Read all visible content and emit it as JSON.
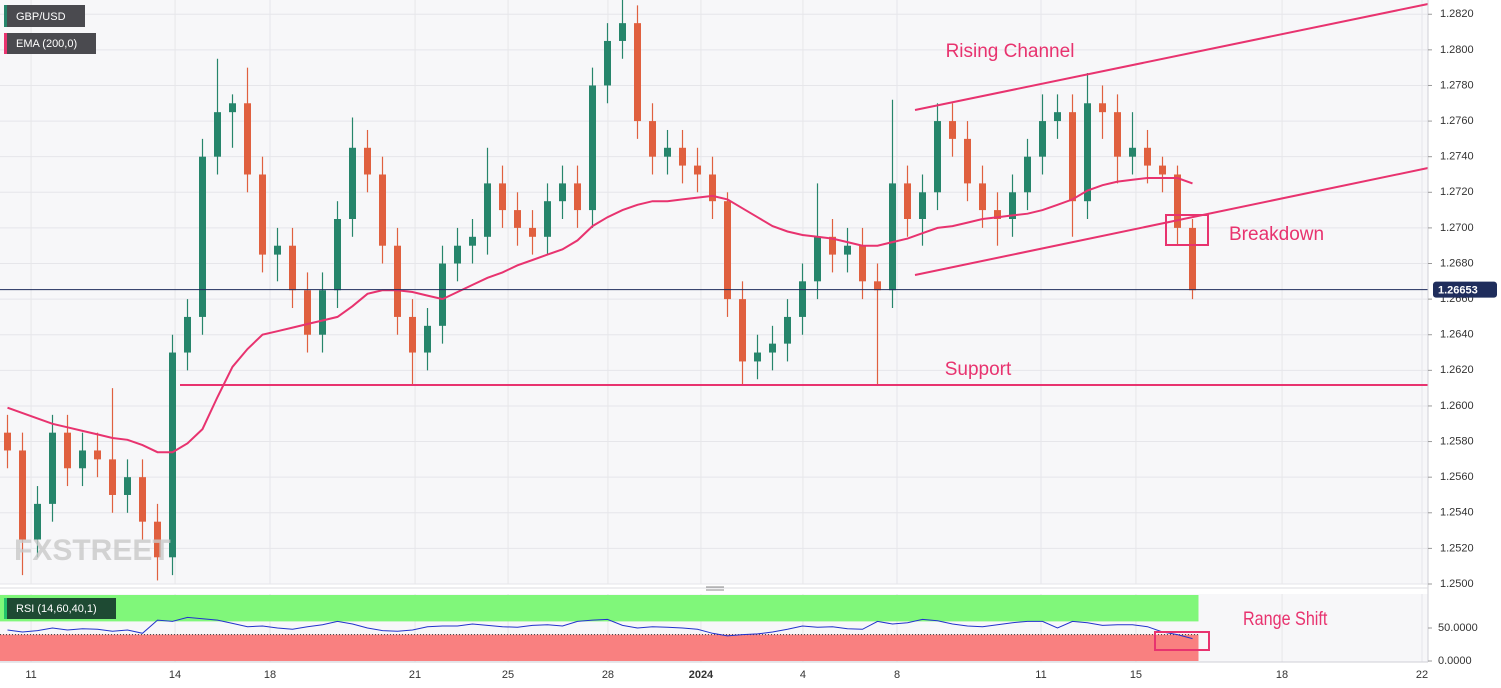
{
  "chart_data": [
    {
      "type": "candlestick",
      "title": "GBP/USD",
      "watermark": "FXSTREET",
      "up_color": "#26856b",
      "down_color": "#e0603f",
      "xlim": [
        0,
        95.2
      ],
      "xticks": [
        {
          "value": 2.07,
          "label": "11"
        },
        {
          "value": 11.67,
          "label": "14"
        },
        {
          "value": 18,
          "label": "18"
        },
        {
          "value": 27.67,
          "label": "21"
        },
        {
          "value": 33.87,
          "label": "25"
        },
        {
          "value": 40.53,
          "label": "28"
        },
        {
          "value": 46.73,
          "label": "2024"
        },
        {
          "value": 53.53,
          "label": "4"
        },
        {
          "value": 59.8,
          "label": "8"
        },
        {
          "value": 69.4,
          "label": "11"
        },
        {
          "value": 75.73,
          "label": "15"
        },
        {
          "value": 85.47,
          "label": "18"
        },
        {
          "value": 94.8,
          "label": "22"
        }
      ],
      "ylim": [
        1.25,
        1.2828
      ],
      "yticks": [
        {
          "value": 1.25,
          "label": "1.2500"
        },
        {
          "value": 1.252,
          "label": "1.2520"
        },
        {
          "value": 1.254,
          "label": "1.2540"
        },
        {
          "value": 1.256,
          "label": "1.2560"
        },
        {
          "value": 1.258,
          "label": "1.2580"
        },
        {
          "value": 1.26,
          "label": "1.2600"
        },
        {
          "value": 1.262,
          "label": "1.2620"
        },
        {
          "value": 1.264,
          "label": "1.2640"
        },
        {
          "value": 1.266,
          "label": "1.2660"
        },
        {
          "value": 1.268,
          "label": "1.2680"
        },
        {
          "value": 1.27,
          "label": "1.2700"
        },
        {
          "value": 1.272,
          "label": "1.2720"
        },
        {
          "value": 1.274,
          "label": "1.2740"
        },
        {
          "value": 1.276,
          "label": "1.2760"
        },
        {
          "value": 1.278,
          "label": "1.2780"
        },
        {
          "value": 1.28,
          "label": "1.2800"
        },
        {
          "value": 1.282,
          "label": "1.2820"
        }
      ],
      "grid": true,
      "last_price": 1.26653,
      "last_price_color": "#1f2d5c",
      "annotations": [
        "Rising Channel",
        "Support",
        "Breakdown"
      ],
      "x": [
        0.5,
        1.5,
        2.5,
        3.5,
        4.5,
        5.5,
        6.5,
        7.5,
        8.5,
        9.5,
        10.5,
        11.5,
        12.5,
        13.5,
        14.5,
        15.5,
        16.5,
        17.5,
        18.5,
        19.5,
        20.5,
        21.5,
        22.5,
        23.5,
        24.5,
        25.5,
        26.5,
        27.5,
        28.5,
        29.5,
        30.5,
        31.5,
        32.5,
        33.5,
        34.5,
        35.5,
        36.5,
        37.5,
        38.5,
        39.5,
        40.5,
        41.5,
        42.5,
        43.5,
        44.5,
        45.5,
        46.5,
        47.5,
        48.5,
        49.5,
        50.5,
        51.5,
        52.5,
        53.5,
        54.5,
        55.5,
        56.5,
        57.5,
        58.5,
        59.5,
        60.5,
        61.5,
        62.5,
        63.5,
        64.5,
        65.5,
        66.5,
        67.5,
        68.5,
        69.5,
        70.5,
        71.5,
        72.5,
        73.5,
        74.5,
        75.5,
        76.5,
        77.5,
        78.5,
        79.5
      ],
      "ohlc": [
        [
          1.2585,
          1.2595,
          1.2565,
          1.2575
        ],
        [
          1.2575,
          1.2585,
          1.2505,
          1.2525
        ],
        [
          1.2525,
          1.2555,
          1.2515,
          1.2545
        ],
        [
          1.2545,
          1.2595,
          1.2535,
          1.2585
        ],
        [
          1.2585,
          1.2595,
          1.2555,
          1.2565
        ],
        [
          1.2565,
          1.2585,
          1.2555,
          1.2575
        ],
        [
          1.2575,
          1.2585,
          1.256,
          1.257
        ],
        [
          1.257,
          1.261,
          1.254,
          1.255
        ],
        [
          1.255,
          1.257,
          1.254,
          1.256
        ],
        [
          1.256,
          1.257,
          1.2525,
          1.2535
        ],
        [
          1.2535,
          1.2545,
          1.2502,
          1.2515
        ],
        [
          1.2515,
          1.264,
          1.2505,
          1.263
        ],
        [
          1.263,
          1.266,
          1.262,
          1.265
        ],
        [
          1.265,
          1.275,
          1.264,
          1.274
        ],
        [
          1.274,
          1.2795,
          1.273,
          1.2765
        ],
        [
          1.2765,
          1.2775,
          1.2745,
          1.277
        ],
        [
          1.277,
          1.279,
          1.272,
          1.273
        ],
        [
          1.273,
          1.274,
          1.2675,
          1.2685
        ],
        [
          1.2685,
          1.27,
          1.267,
          1.269
        ],
        [
          1.269,
          1.27,
          1.2655,
          1.2665
        ],
        [
          1.2665,
          1.2675,
          1.263,
          1.264
        ],
        [
          1.264,
          1.2675,
          1.263,
          1.2665
        ],
        [
          1.2665,
          1.2715,
          1.2655,
          1.2705
        ],
        [
          1.2705,
          1.2762,
          1.2695,
          1.2745
        ],
        [
          1.2745,
          1.2755,
          1.272,
          1.273
        ],
        [
          1.273,
          1.274,
          1.268,
          1.269
        ],
        [
          1.269,
          1.27,
          1.264,
          1.265
        ],
        [
          1.265,
          1.266,
          1.2612,
          1.263
        ],
        [
          1.263,
          1.2655,
          1.262,
          1.2645
        ],
        [
          1.2645,
          1.269,
          1.2635,
          1.268
        ],
        [
          1.268,
          1.27,
          1.267,
          1.269
        ],
        [
          1.269,
          1.2705,
          1.268,
          1.2695
        ],
        [
          1.2695,
          1.2745,
          1.2685,
          1.2725
        ],
        [
          1.2725,
          1.2735,
          1.27,
          1.271
        ],
        [
          1.271,
          1.272,
          1.269,
          1.27
        ],
        [
          1.27,
          1.271,
          1.2685,
          1.2695
        ],
        [
          1.2695,
          1.2725,
          1.2685,
          1.2715
        ],
        [
          1.2715,
          1.2735,
          1.2705,
          1.2725
        ],
        [
          1.2725,
          1.2735,
          1.27,
          1.271
        ],
        [
          1.271,
          1.279,
          1.27,
          1.278
        ],
        [
          1.278,
          1.2815,
          1.277,
          1.2805
        ],
        [
          1.2805,
          1.2828,
          1.2795,
          1.2815
        ],
        [
          1.2815,
          1.2825,
          1.275,
          1.276
        ],
        [
          1.276,
          1.277,
          1.273,
          1.274
        ],
        [
          1.274,
          1.2755,
          1.273,
          1.2745
        ],
        [
          1.2745,
          1.2755,
          1.2725,
          1.2735
        ],
        [
          1.2735,
          1.2745,
          1.272,
          1.273
        ],
        [
          1.273,
          1.274,
          1.2705,
          1.2715
        ],
        [
          1.2715,
          1.272,
          1.265,
          1.266
        ],
        [
          1.266,
          1.267,
          1.2612,
          1.2625
        ],
        [
          1.2625,
          1.264,
          1.2615,
          1.263
        ],
        [
          1.263,
          1.2645,
          1.262,
          1.2635
        ],
        [
          1.2635,
          1.266,
          1.2625,
          1.265
        ],
        [
          1.265,
          1.268,
          1.264,
          1.267
        ],
        [
          1.267,
          1.2725,
          1.266,
          1.2695
        ],
        [
          1.2695,
          1.2705,
          1.2675,
          1.2685
        ],
        [
          1.2685,
          1.27,
          1.2675,
          1.269
        ],
        [
          1.269,
          1.27,
          1.266,
          1.267
        ],
        [
          1.267,
          1.268,
          1.2612,
          1.2665
        ],
        [
          1.2665,
          1.2772,
          1.2655,
          1.2725
        ],
        [
          1.2725,
          1.2735,
          1.2695,
          1.2705
        ],
        [
          1.2705,
          1.273,
          1.269,
          1.272
        ],
        [
          1.272,
          1.277,
          1.271,
          1.276
        ],
        [
          1.276,
          1.277,
          1.274,
          1.275
        ],
        [
          1.275,
          1.276,
          1.2715,
          1.2725
        ],
        [
          1.2725,
          1.2735,
          1.27,
          1.271
        ],
        [
          1.271,
          1.272,
          1.269,
          1.2705
        ],
        [
          1.2705,
          1.273,
          1.2695,
          1.272
        ],
        [
          1.272,
          1.275,
          1.271,
          1.274
        ],
        [
          1.274,
          1.2775,
          1.273,
          1.276
        ],
        [
          1.276,
          1.2775,
          1.275,
          1.2765
        ],
        [
          1.2765,
          1.2775,
          1.2695,
          1.2715
        ],
        [
          1.2715,
          1.2787,
          1.2705,
          1.277
        ],
        [
          1.277,
          1.278,
          1.275,
          1.2765
        ],
        [
          1.2765,
          1.2775,
          1.2725,
          1.274
        ],
        [
          1.274,
          1.2765,
          1.273,
          1.2745
        ],
        [
          1.2745,
          1.2755,
          1.2725,
          1.2735
        ],
        [
          1.2735,
          1.274,
          1.272,
          1.273
        ],
        [
          1.273,
          1.2735,
          1.269,
          1.27
        ],
        [
          1.27,
          1.2705,
          1.266,
          1.2665
        ]
      ],
      "series": [
        {
          "name": "EMA (200,0)",
          "color": "#e8336f",
          "values": [
            1.2599,
            1.2596,
            1.2593,
            1.259,
            1.2588,
            1.2586,
            1.2584,
            1.2582,
            1.2581,
            1.2578,
            1.2574,
            1.2574,
            1.2579,
            1.2587,
            1.2605,
            1.2622,
            1.2632,
            1.264,
            1.2642,
            1.2644,
            1.2646,
            1.2648,
            1.265,
            1.2656,
            1.2663,
            1.2665,
            1.2665,
            1.2664,
            1.2662,
            1.266,
            1.2664,
            1.2668,
            1.2672,
            1.2675,
            1.2679,
            1.2682,
            1.2685,
            1.2688,
            1.2693,
            1.2701,
            1.2706,
            1.271,
            1.2713,
            1.2715,
            1.2715,
            1.2716,
            1.2717,
            1.2718,
            1.2716,
            1.2711,
            1.2706,
            1.2701,
            1.2698,
            1.2696,
            1.2695,
            1.2694,
            1.2692,
            1.269,
            1.269,
            1.2692,
            1.2694,
            1.2697,
            1.27,
            1.2701,
            1.2703,
            1.2705,
            1.2706,
            1.2707,
            1.2708,
            1.271,
            1.2713,
            1.2716,
            1.2721,
            1.2724,
            1.2726,
            1.2727,
            1.2728,
            1.2728,
            1.2728,
            1.2725
          ]
        }
      ]
    },
    {
      "type": "line",
      "title": "RSI (14,60,40,1)",
      "color": "#2233cc",
      "ylim": [
        0,
        100
      ],
      "yticks": [
        {
          "value": 50,
          "label": "50.0000"
        },
        {
          "value": 0,
          "label": "0.0000"
        }
      ],
      "upper_band": [
        60,
        100
      ],
      "upper_band_color": "#80f77a",
      "lower_band": [
        0,
        40
      ],
      "lower_band_color": "#f98080",
      "annotations": [
        "Range Shift"
      ],
      "values": [
        47,
        44,
        46,
        50,
        47,
        49,
        48,
        45,
        47,
        42,
        62,
        60,
        66,
        64,
        62,
        57,
        52,
        53,
        50,
        48,
        52,
        55,
        60,
        56,
        50,
        46,
        45,
        47,
        52,
        53,
        53,
        56,
        54,
        52,
        51,
        54,
        55,
        53,
        60,
        62,
        63,
        54,
        50,
        52,
        51,
        50,
        48,
        42,
        38,
        40,
        41,
        44,
        48,
        53,
        51,
        52,
        49,
        48,
        60,
        56,
        58,
        63,
        61,
        56,
        53,
        52,
        55,
        58,
        60,
        60,
        50,
        60,
        58,
        54,
        55,
        55,
        52,
        44,
        40,
        34
      ]
    }
  ]
}
